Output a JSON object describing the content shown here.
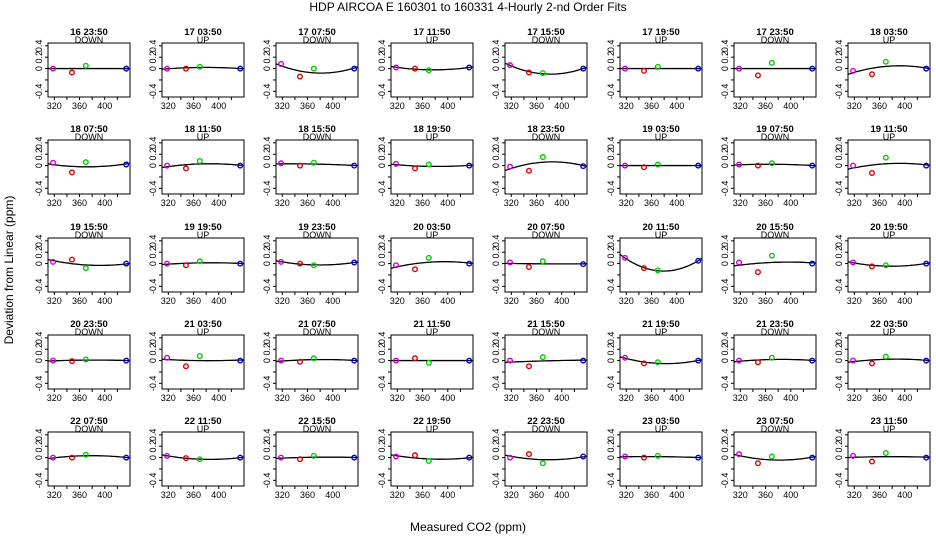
{
  "chart_data": {
    "type": "scatter",
    "title": "HDP   AIRCOA E   160301 to 160331   4-Hourly 2-nd Order Fits",
    "xlabel": "Measured CO2 (ppm)",
    "ylabel": "Deviation from Linear (ppm)",
    "xlim": [
      310,
      440
    ],
    "ylim": [
      -0.5,
      0.45
    ],
    "x_ticks": [
      320,
      360,
      400
    ],
    "x_ticks_minor": [
      340,
      380,
      420
    ],
    "y_ticks": [
      -0.4,
      0,
      0.2,
      0.4
    ],
    "y_ticks_minor": [
      -0.2
    ],
    "grid": false,
    "standards_co2": [
      318,
      348,
      370,
      434
    ],
    "colors": {
      "std1": "#cc00cc",
      "std2": "#dd0000",
      "std3": "#00cc00",
      "std4": "#0000cc",
      "fit": "#000000"
    },
    "panels": [
      {
        "title": "16 23:50",
        "label": "DOWN",
        "points": [
          0.0,
          -0.07,
          0.05,
          0.0
        ],
        "curve": "flat"
      },
      {
        "title": "17 03:50",
        "label": "UP",
        "points": [
          0.0,
          0.0,
          0.03,
          0.0
        ],
        "curve": "fit"
      },
      {
        "title": "17 07:50",
        "label": "DOWN",
        "points": [
          0.08,
          -0.14,
          0.0,
          0.0
        ],
        "curve": "fit"
      },
      {
        "title": "17 11:50",
        "label": "UP",
        "points": [
          0.02,
          0.0,
          -0.03,
          0.02
        ],
        "curve": "fit"
      },
      {
        "title": "17 15:50",
        "label": "DOWN",
        "points": [
          0.06,
          -0.07,
          -0.08,
          0.0
        ],
        "curve": "fit"
      },
      {
        "title": "17 19:50",
        "label": "UP",
        "points": [
          0.0,
          -0.04,
          0.03,
          0.0
        ],
        "curve": "flat"
      },
      {
        "title": "17 23:50",
        "label": "DOWN",
        "points": [
          0.0,
          -0.12,
          0.1,
          0.0
        ],
        "curve": "flat"
      },
      {
        "title": "18 03:50",
        "label": "UP",
        "points": [
          -0.04,
          -0.1,
          0.12,
          0.0
        ],
        "curve": "fit"
      },
      {
        "title": "18 07:50",
        "label": "DOWN",
        "points": [
          0.05,
          -0.12,
          0.06,
          0.02
        ],
        "curve": "fit"
      },
      {
        "title": "18 11:50",
        "label": "UP",
        "points": [
          0.0,
          -0.05,
          0.08,
          0.0
        ],
        "curve": "fit"
      },
      {
        "title": "18 15:50",
        "label": "DOWN",
        "points": [
          0.04,
          0.0,
          0.05,
          0.0
        ],
        "curve": "fit"
      },
      {
        "title": "18 19:50",
        "label": "UP",
        "points": [
          0.03,
          -0.05,
          0.02,
          0.0
        ],
        "curve": "fit"
      },
      {
        "title": "18 23:50",
        "label": "DOWN",
        "points": [
          -0.02,
          -0.09,
          0.15,
          -0.01
        ],
        "curve": "fit"
      },
      {
        "title": "19 03:50",
        "label": "UP",
        "points": [
          0.0,
          -0.03,
          0.02,
          0.0
        ],
        "curve": "flat"
      },
      {
        "title": "19 07:50",
        "label": "DOWN",
        "points": [
          0.02,
          0.0,
          0.04,
          0.0
        ],
        "curve": "fit"
      },
      {
        "title": "19 11:50",
        "label": "UP",
        "points": [
          0.0,
          -0.13,
          0.14,
          0.0
        ],
        "curve": "fit"
      },
      {
        "title": "19 15:50",
        "label": "DOWN",
        "points": [
          0.03,
          0.07,
          -0.08,
          0.0
        ],
        "curve": "fit"
      },
      {
        "title": "19 19:50",
        "label": "UP",
        "points": [
          0.0,
          -0.03,
          0.04,
          0.0
        ],
        "curve": "fit"
      },
      {
        "title": "19 23:50",
        "label": "DOWN",
        "points": [
          0.03,
          0.0,
          -0.03,
          0.02
        ],
        "curve": "fit"
      },
      {
        "title": "20 03:50",
        "label": "UP",
        "points": [
          -0.03,
          -0.1,
          0.1,
          0.0
        ],
        "curve": "fit"
      },
      {
        "title": "20 07:50",
        "label": "DOWN",
        "points": [
          0.02,
          -0.06,
          0.04,
          -0.01
        ],
        "curve": "fit"
      },
      {
        "title": "20 11:50",
        "label": "UP",
        "points": [
          0.1,
          -0.08,
          -0.12,
          0.05
        ],
        "curve": "fit"
      },
      {
        "title": "20 15:50",
        "label": "DOWN",
        "points": [
          0.02,
          -0.15,
          0.14,
          0.0
        ],
        "curve": "fit"
      },
      {
        "title": "20 19:50",
        "label": "UP",
        "points": [
          0.02,
          -0.05,
          -0.03,
          0.0
        ],
        "curve": "fit"
      },
      {
        "title": "20 23:50",
        "label": "DOWN",
        "points": [
          0.0,
          -0.01,
          0.02,
          0.0
        ],
        "curve": "fit"
      },
      {
        "title": "21 03:50",
        "label": "UP",
        "points": [
          0.05,
          -0.1,
          0.08,
          0.0
        ],
        "curve": "fit"
      },
      {
        "title": "21 07:50",
        "label": "DOWN",
        "points": [
          0.0,
          -0.02,
          0.04,
          0.0
        ],
        "curve": "fit"
      },
      {
        "title": "21 11:50",
        "label": "UP",
        "points": [
          0.0,
          0.04,
          -0.04,
          0.0
        ],
        "curve": "flat"
      },
      {
        "title": "21 15:50",
        "label": "DOWN",
        "points": [
          0.0,
          -0.1,
          0.06,
          0.0
        ],
        "curve": "fit"
      },
      {
        "title": "21 19:50",
        "label": "UP",
        "points": [
          0.05,
          -0.05,
          -0.03,
          0.0
        ],
        "curve": "fit"
      },
      {
        "title": "21 23:50",
        "label": "DOWN",
        "points": [
          0.0,
          -0.03,
          0.05,
          0.0
        ],
        "curve": "fit"
      },
      {
        "title": "22 03:50",
        "label": "UP",
        "points": [
          0.0,
          -0.05,
          0.07,
          0.0
        ],
        "curve": "fit"
      },
      {
        "title": "22 07:50",
        "label": "DOWN",
        "points": [
          0.0,
          0.0,
          0.05,
          0.0
        ],
        "curve": "fit"
      },
      {
        "title": "22 11:50",
        "label": "UP",
        "points": [
          0.03,
          -0.01,
          -0.03,
          0.0
        ],
        "curve": "fit"
      },
      {
        "title": "22 15:50",
        "label": "DOWN",
        "points": [
          0.0,
          -0.03,
          0.03,
          0.0
        ],
        "curve": "fit"
      },
      {
        "title": "22 19:50",
        "label": "UP",
        "points": [
          0.02,
          0.04,
          -0.06,
          0.0
        ],
        "curve": "fit"
      },
      {
        "title": "22 23:50",
        "label": "DOWN",
        "points": [
          0.0,
          0.06,
          -0.1,
          0.02
        ],
        "curve": "fit"
      },
      {
        "title": "23 03:50",
        "label": "UP",
        "points": [
          0.02,
          0.0,
          0.03,
          0.0
        ],
        "curve": "fit"
      },
      {
        "title": "23 07:50",
        "label": "DOWN",
        "points": [
          0.06,
          -0.1,
          0.02,
          0.0
        ],
        "curve": "fit"
      },
      {
        "title": "23 11:50",
        "label": "UP",
        "points": [
          0.03,
          -0.07,
          0.08,
          0.0
        ],
        "curve": "fit"
      }
    ]
  }
}
